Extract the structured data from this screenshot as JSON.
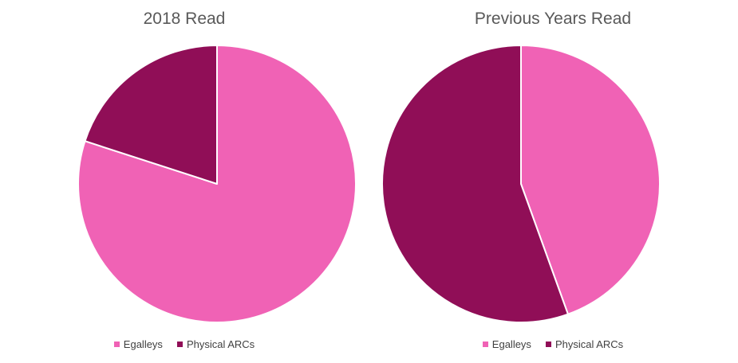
{
  "colors": {
    "egalleys": "#F062B5",
    "physical": "#900E57"
  },
  "chart_data": [
    {
      "type": "pie",
      "title": "2018 Read",
      "labels": [
        "Egalleys",
        "Physical ARCs"
      ],
      "values": [
        80,
        20
      ],
      "legend": "bottom"
    },
    {
      "type": "pie",
      "title": "Previous Years Read",
      "labels": [
        "Egalleys",
        "Physical ARCs"
      ],
      "values": [
        44.5,
        55.5
      ],
      "legend": "bottom"
    }
  ]
}
